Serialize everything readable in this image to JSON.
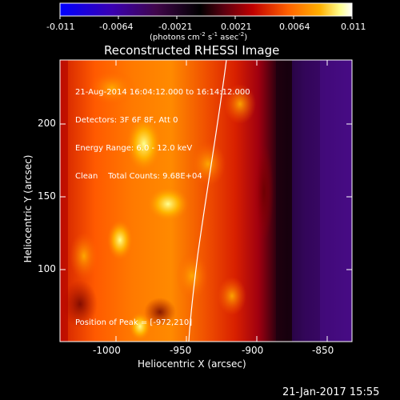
{
  "colorbar": {
    "tick_labels": [
      "-0.011",
      "-0.0064",
      "-0.0021",
      "0.0021",
      "0.0064",
      "0.011"
    ],
    "unit_main": "(photons cm",
    "unit_sup1": "-2",
    "unit_mid": " s",
    "unit_sup2": "-1",
    "unit_mid2": " asec",
    "unit_sup3": "-2",
    "unit_end": ")",
    "colors": [
      "#0000ff",
      "#3a00aa",
      "#4a0a4a",
      "#000000",
      "#6a0010",
      "#c40000",
      "#ff5a00",
      "#ffaa00",
      "#ffff80",
      "#ffffff"
    ]
  },
  "image": {
    "title": "Reconstructed RHESSI Image",
    "info_lines": [
      "21-Aug-2014 16:04:12.000 to 16:14:12.000",
      "Detectors: 3F 6F 8F, Att 0",
      "Energy Range: 6.0 - 12.0 keV",
      "Clean    Total Counts: 9.68E+04"
    ],
    "peak_text": "Position of Peak = [-972,210]",
    "xlabel": "Heliocentric X (arcsec)",
    "ylabel": "Heliocentric Y (arcsec)",
    "x_ticks": [
      "-1000",
      "-950",
      "-900",
      "-850"
    ],
    "y_ticks": [
      "100",
      "150",
      "200"
    ],
    "xlim": [
      -1035,
      -840
    ],
    "ylim": [
      50,
      245
    ],
    "peak": [
      -972,
      210
    ]
  },
  "footer": {
    "date": "21-Jan-2017 15:55"
  }
}
